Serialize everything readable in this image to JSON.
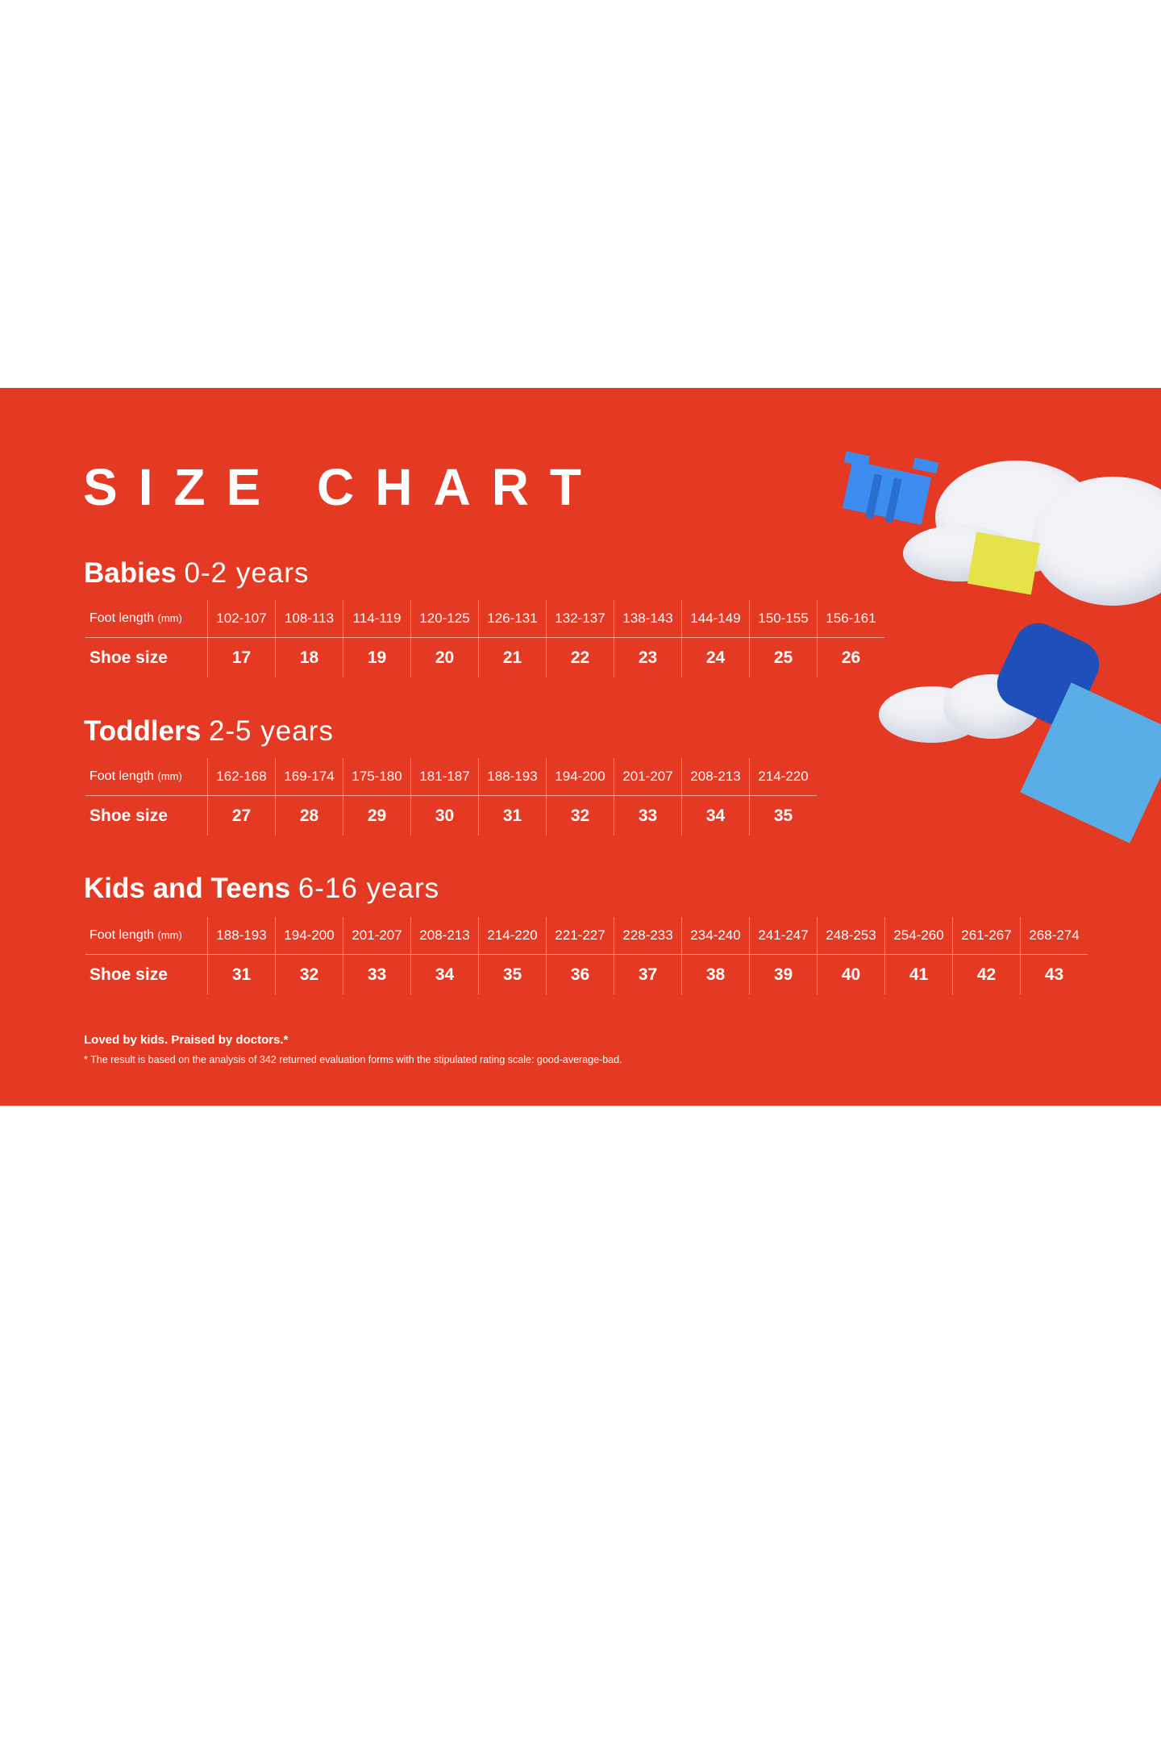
{
  "title": "SIZE CHART",
  "colors": {
    "background": "#e43a24",
    "text": "#ffffff"
  },
  "row_labels": {
    "foot_length": "Foot length",
    "foot_length_unit": "(mm)",
    "shoe_size": "Shoe size"
  },
  "sections": [
    {
      "name": "Babies",
      "age": "0-2 years",
      "foot_length": [
        "102-107",
        "108-113",
        "114-119",
        "120-125",
        "126-131",
        "132-137",
        "138-143",
        "144-149",
        "150-155",
        "156-161"
      ],
      "shoe_size": [
        "17",
        "18",
        "19",
        "20",
        "21",
        "22",
        "23",
        "24",
        "25",
        "26"
      ]
    },
    {
      "name": "Toddlers",
      "age": "2-5 years",
      "foot_length": [
        "162-168",
        "169-174",
        "175-180",
        "181-187",
        "188-193",
        "194-200",
        "201-207",
        "208-213",
        "214-220"
      ],
      "shoe_size": [
        "27",
        "28",
        "29",
        "30",
        "31",
        "32",
        "33",
        "34",
        "35"
      ]
    },
    {
      "name": "Kids and Teens",
      "age": "6-16 years",
      "foot_length": [
        "188-193",
        "194-200",
        "201-207",
        "208-213",
        "214-220",
        "221-227",
        "228-233",
        "234-240",
        "241-247",
        "248-253",
        "254-260",
        "261-267",
        "268-274"
      ],
      "shoe_size": [
        "31",
        "32",
        "33",
        "34",
        "35",
        "36",
        "37",
        "38",
        "39",
        "40",
        "41",
        "42",
        "43"
      ]
    }
  ],
  "footnote": {
    "tagline": "Loved by kids. Praised by doctors.*",
    "note": "* The result is based on the analysis of 342 returned evaluation forms with the stipulated rating scale: good-average-bad."
  }
}
